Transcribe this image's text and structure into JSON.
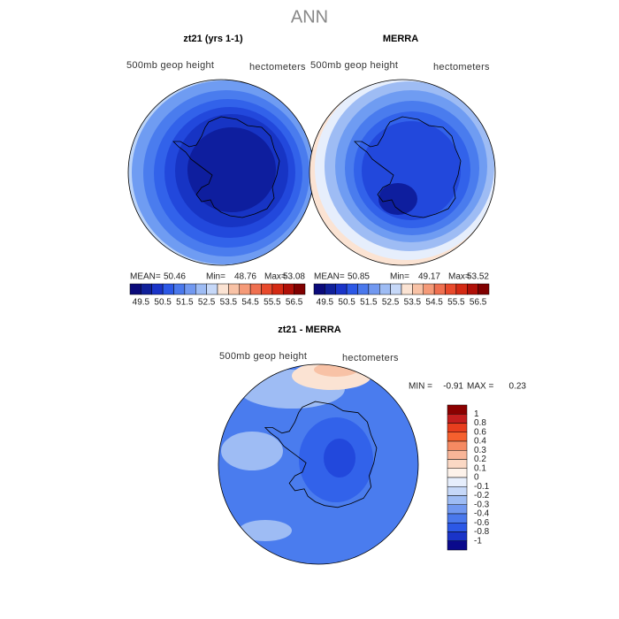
{
  "title": "ANN",
  "panels": [
    {
      "title": "zt21 (yrs 1-1)",
      "variable": "500mb geop height",
      "units": "hectometers",
      "stats": [
        {
          "label": "MEAN=",
          "value": 50.46
        },
        {
          "label": "Min=",
          "value": 48.76
        },
        {
          "label": "Max=",
          "value": 53.08
        }
      ],
      "colorbar_labels": [
        49.5,
        50.5,
        51.5,
        52.5,
        53.5,
        54.5,
        55.5,
        56.5
      ]
    },
    {
      "title": "MERRA",
      "variable": "500mb geop height",
      "units": "hectometers",
      "stats": [
        {
          "label": "MEAN=",
          "value": 50.85
        },
        {
          "label": "Min=",
          "value": 49.17
        },
        {
          "label": "Max=",
          "value": 53.52
        }
      ],
      "colorbar_labels": [
        49.5,
        50.5,
        51.5,
        52.5,
        53.5,
        54.5,
        55.5,
        56.5
      ]
    }
  ],
  "colorbar_colors": [
    "#0a0a7a",
    "#10209a",
    "#1a34c8",
    "#2c58e6",
    "#4a78ec",
    "#7198f0",
    "#9ebcf4",
    "#c6d8f8",
    "#fbe3d3",
    "#f8c2a6",
    "#f59a78",
    "#ef7050",
    "#e84a2c",
    "#d42a14",
    "#b01008",
    "#800000"
  ],
  "difference": {
    "title": "zt21 - MERRA",
    "variable": "500mb geop height",
    "units": "hectometers",
    "stats": [
      {
        "label": "MIN =",
        "value": -0.91
      },
      {
        "label": "MAX =",
        "value": 0.23
      }
    ],
    "colorbar_labels": [
      1,
      0.8,
      0.6,
      0.4,
      0.3,
      0.2,
      0.1,
      0,
      -0.1,
      -0.2,
      -0.3,
      -0.4,
      -0.6,
      -0.8,
      -1
    ],
    "colorbar_colors": [
      "#8b0000",
      "#c41e1e",
      "#e83e1e",
      "#f5602e",
      "#f58a62",
      "#f8b598",
      "#fbd8c4",
      "#fdf2ea",
      "#e6eefc",
      "#c6d8f8",
      "#9ebcf4",
      "#7198f0",
      "#4a78ec",
      "#2c58e6",
      "#1a34c8",
      "#0a0a8c"
    ]
  }
}
